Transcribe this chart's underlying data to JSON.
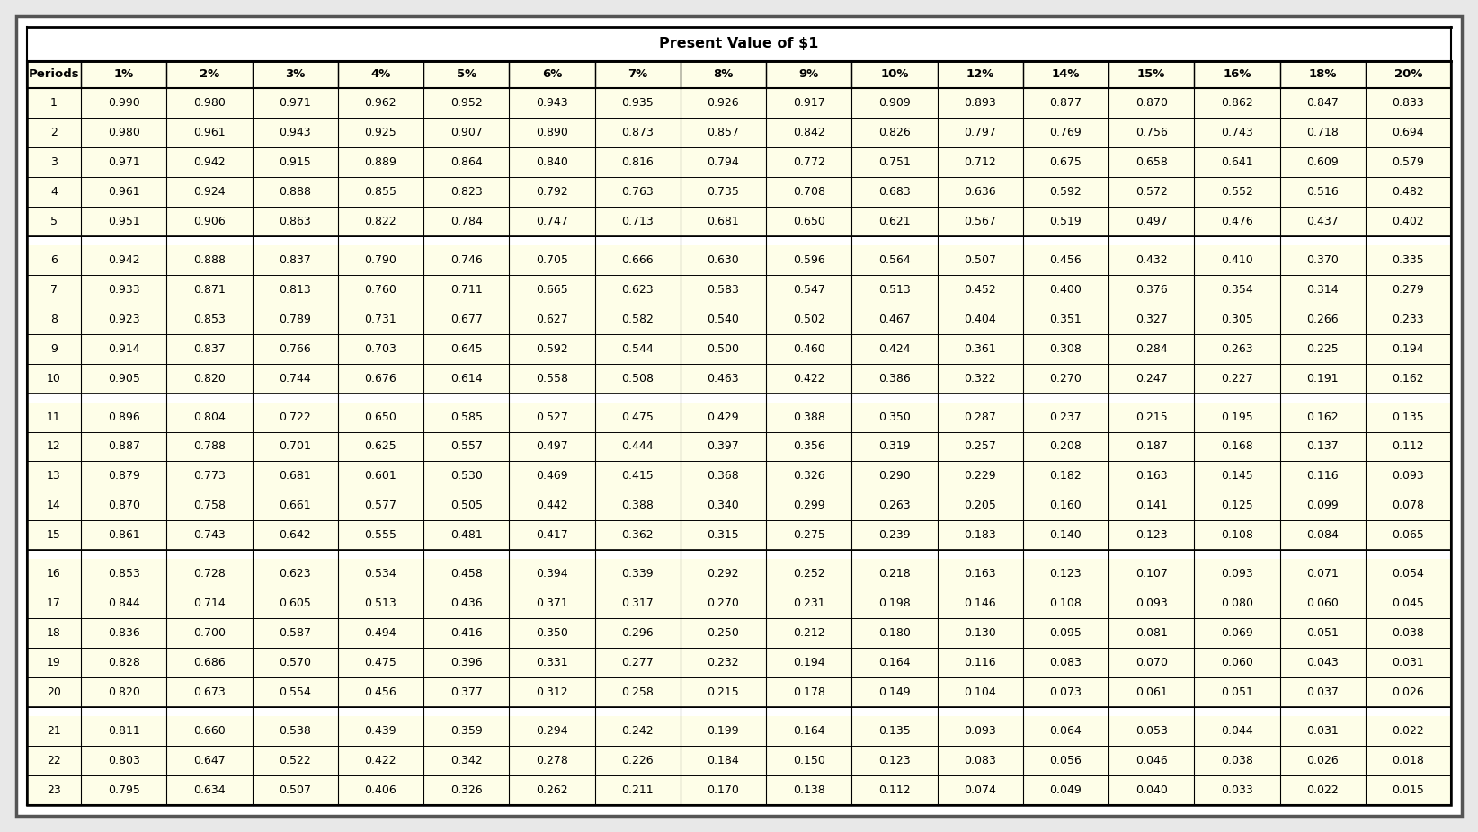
{
  "title": "Present Value of $1",
  "columns": [
    "Periods",
    "1%",
    "2%",
    "3%",
    "4%",
    "5%",
    "6%",
    "7%",
    "8%",
    "9%",
    "10%",
    "12%",
    "14%",
    "15%",
    "16%",
    "18%",
    "20%"
  ],
  "rows": [
    [
      1,
      0.99,
      0.98,
      0.971,
      0.962,
      0.952,
      0.943,
      0.935,
      0.926,
      0.917,
      0.909,
      0.893,
      0.877,
      0.87,
      0.862,
      0.847,
      0.833
    ],
    [
      2,
      0.98,
      0.961,
      0.943,
      0.925,
      0.907,
      0.89,
      0.873,
      0.857,
      0.842,
      0.826,
      0.797,
      0.769,
      0.756,
      0.743,
      0.718,
      0.694
    ],
    [
      3,
      0.971,
      0.942,
      0.915,
      0.889,
      0.864,
      0.84,
      0.816,
      0.794,
      0.772,
      0.751,
      0.712,
      0.675,
      0.658,
      0.641,
      0.609,
      0.579
    ],
    [
      4,
      0.961,
      0.924,
      0.888,
      0.855,
      0.823,
      0.792,
      0.763,
      0.735,
      0.708,
      0.683,
      0.636,
      0.592,
      0.572,
      0.552,
      0.516,
      0.482
    ],
    [
      5,
      0.951,
      0.906,
      0.863,
      0.822,
      0.784,
      0.747,
      0.713,
      0.681,
      0.65,
      0.621,
      0.567,
      0.519,
      0.497,
      0.476,
      0.437,
      0.402
    ],
    [
      6,
      0.942,
      0.888,
      0.837,
      0.79,
      0.746,
      0.705,
      0.666,
      0.63,
      0.596,
      0.564,
      0.507,
      0.456,
      0.432,
      0.41,
      0.37,
      0.335
    ],
    [
      7,
      0.933,
      0.871,
      0.813,
      0.76,
      0.711,
      0.665,
      0.623,
      0.583,
      0.547,
      0.513,
      0.452,
      0.4,
      0.376,
      0.354,
      0.314,
      0.279
    ],
    [
      8,
      0.923,
      0.853,
      0.789,
      0.731,
      0.677,
      0.627,
      0.582,
      0.54,
      0.502,
      0.467,
      0.404,
      0.351,
      0.327,
      0.305,
      0.266,
      0.233
    ],
    [
      9,
      0.914,
      0.837,
      0.766,
      0.703,
      0.645,
      0.592,
      0.544,
      0.5,
      0.46,
      0.424,
      0.361,
      0.308,
      0.284,
      0.263,
      0.225,
      0.194
    ],
    [
      10,
      0.905,
      0.82,
      0.744,
      0.676,
      0.614,
      0.558,
      0.508,
      0.463,
      0.422,
      0.386,
      0.322,
      0.27,
      0.247,
      0.227,
      0.191,
      0.162
    ],
    [
      11,
      0.896,
      0.804,
      0.722,
      0.65,
      0.585,
      0.527,
      0.475,
      0.429,
      0.388,
      0.35,
      0.287,
      0.237,
      0.215,
      0.195,
      0.162,
      0.135
    ],
    [
      12,
      0.887,
      0.788,
      0.701,
      0.625,
      0.557,
      0.497,
      0.444,
      0.397,
      0.356,
      0.319,
      0.257,
      0.208,
      0.187,
      0.168,
      0.137,
      0.112
    ],
    [
      13,
      0.879,
      0.773,
      0.681,
      0.601,
      0.53,
      0.469,
      0.415,
      0.368,
      0.326,
      0.29,
      0.229,
      0.182,
      0.163,
      0.145,
      0.116,
      0.093
    ],
    [
      14,
      0.87,
      0.758,
      0.661,
      0.577,
      0.505,
      0.442,
      0.388,
      0.34,
      0.299,
      0.263,
      0.205,
      0.16,
      0.141,
      0.125,
      0.099,
      0.078
    ],
    [
      15,
      0.861,
      0.743,
      0.642,
      0.555,
      0.481,
      0.417,
      0.362,
      0.315,
      0.275,
      0.239,
      0.183,
      0.14,
      0.123,
      0.108,
      0.084,
      0.065
    ],
    [
      16,
      0.853,
      0.728,
      0.623,
      0.534,
      0.458,
      0.394,
      0.339,
      0.292,
      0.252,
      0.218,
      0.163,
      0.123,
      0.107,
      0.093,
      0.071,
      0.054
    ],
    [
      17,
      0.844,
      0.714,
      0.605,
      0.513,
      0.436,
      0.371,
      0.317,
      0.27,
      0.231,
      0.198,
      0.146,
      0.108,
      0.093,
      0.08,
      0.06,
      0.045
    ],
    [
      18,
      0.836,
      0.7,
      0.587,
      0.494,
      0.416,
      0.35,
      0.296,
      0.25,
      0.212,
      0.18,
      0.13,
      0.095,
      0.081,
      0.069,
      0.051,
      0.038
    ],
    [
      19,
      0.828,
      0.686,
      0.57,
      0.475,
      0.396,
      0.331,
      0.277,
      0.232,
      0.194,
      0.164,
      0.116,
      0.083,
      0.07,
      0.06,
      0.043,
      0.031
    ],
    [
      20,
      0.82,
      0.673,
      0.554,
      0.456,
      0.377,
      0.312,
      0.258,
      0.215,
      0.178,
      0.149,
      0.104,
      0.073,
      0.061,
      0.051,
      0.037,
      0.026
    ],
    [
      21,
      0.811,
      0.66,
      0.538,
      0.439,
      0.359,
      0.294,
      0.242,
      0.199,
      0.164,
      0.135,
      0.093,
      0.064,
      0.053,
      0.044,
      0.031,
      0.022
    ],
    [
      22,
      0.803,
      0.647,
      0.522,
      0.422,
      0.342,
      0.278,
      0.226,
      0.184,
      0.15,
      0.123,
      0.083,
      0.056,
      0.046,
      0.038,
      0.026,
      0.018
    ],
    [
      23,
      0.795,
      0.634,
      0.507,
      0.406,
      0.326,
      0.262,
      0.211,
      0.17,
      0.138,
      0.112,
      0.074,
      0.049,
      0.04,
      0.033,
      0.022,
      0.015
    ]
  ],
  "group_breaks": [
    5,
    10,
    15,
    20
  ],
  "outer_bg": "#f0f0f0",
  "table_bg": "#fefee8",
  "cell_bg": "#ffffff",
  "header_bg": "#fefee8",
  "border_color": "#000000",
  "title_fontsize": 11.5,
  "header_fontsize": 9.5,
  "cell_fontsize": 9.0
}
